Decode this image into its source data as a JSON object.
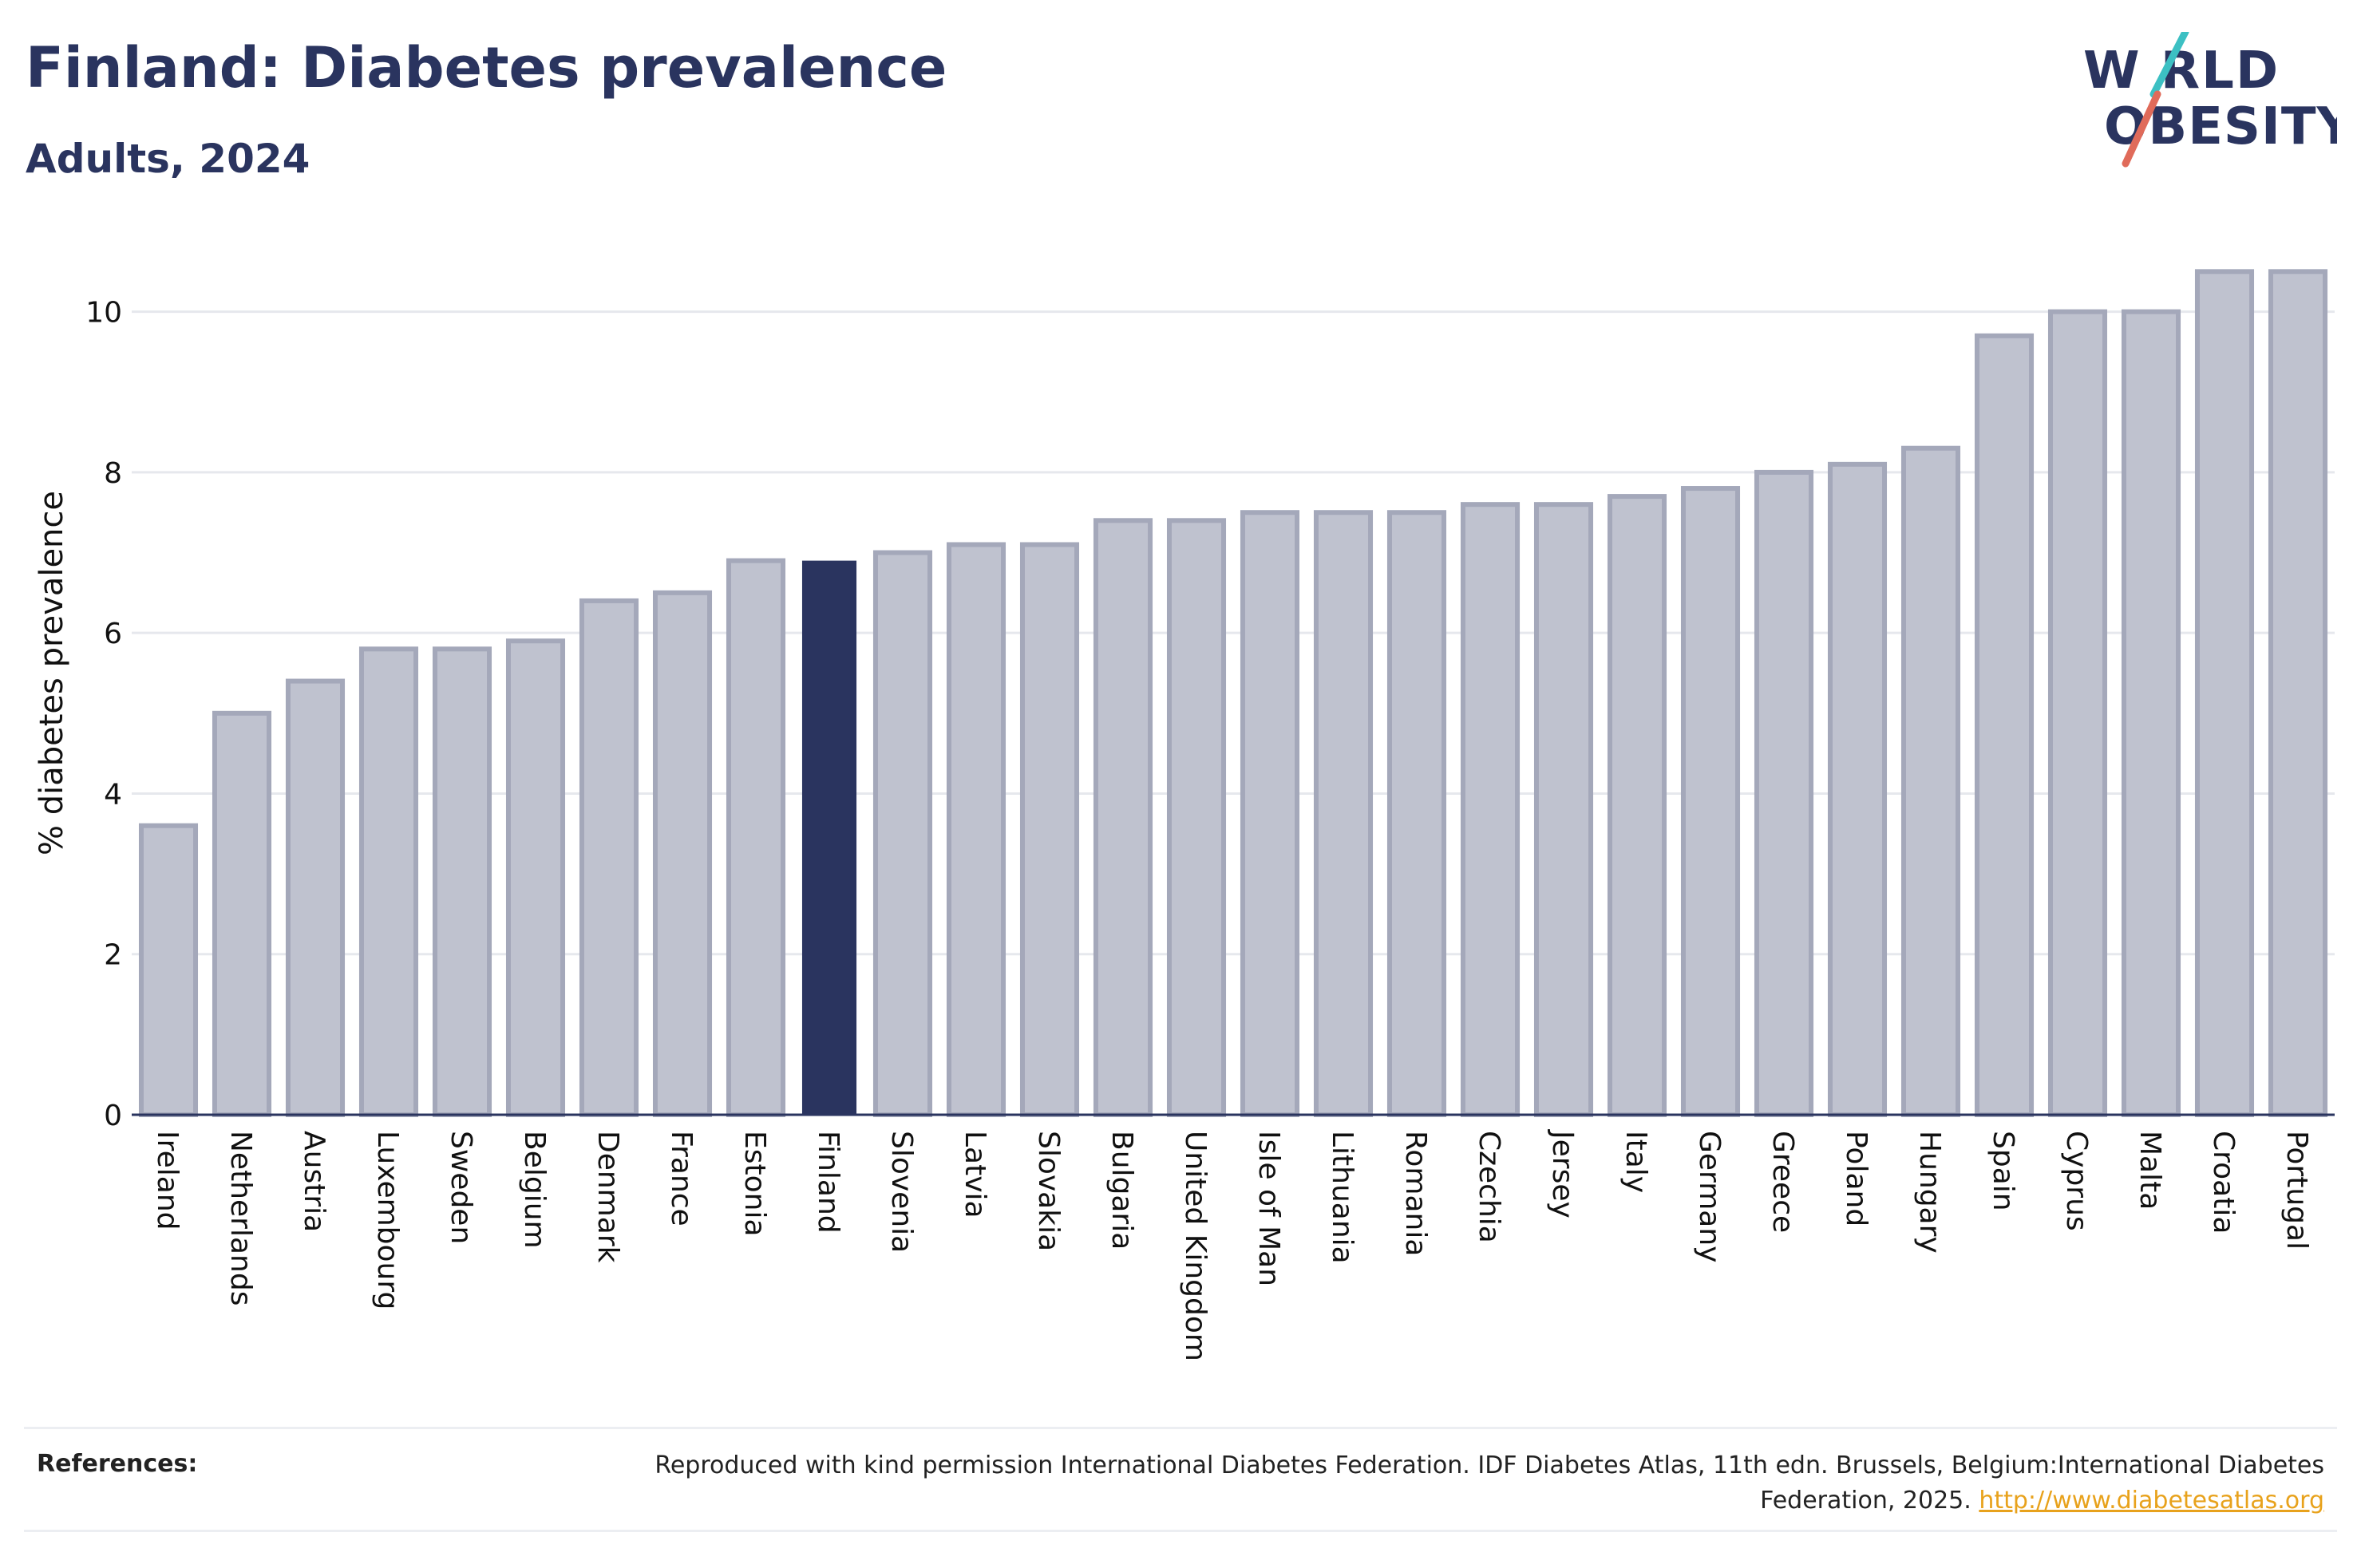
{
  "header": {
    "title": "Finland: Diabetes prevalence",
    "subtitle": "Adults, 2024"
  },
  "logo": {
    "line1": "W RLD",
    "line2": "OBESITY",
    "text": "WORLD OBESITY",
    "slash_colors": [
      "#3cc0c3",
      "#e06b5a"
    ]
  },
  "references": {
    "label": "References:",
    "text": "Reproduced with kind permission International Diabetes Federation. IDF Diabetes Atlas, 11th edn. Brussels, Belgium:International Diabetes Federation, 2025.",
    "link": "http://www.diabetesatlas.org"
  },
  "colors": {
    "highlight": "#2a345f",
    "bar_fill": "#bfc2cf",
    "bar_stroke": "#a4a8ba",
    "grid": "#e6e8ed",
    "axis_text": "#111111"
  },
  "chart_data": {
    "type": "bar",
    "title": "Finland: Diabetes prevalence",
    "subtitle": "Adults, 2024",
    "xlabel": "",
    "ylabel": "% diabetes prevalence",
    "ylim": [
      0,
      11
    ],
    "yticks": [
      0,
      2,
      4,
      6,
      8,
      10
    ],
    "grid": true,
    "highlight": "Finland",
    "categories": [
      "Ireland",
      "Netherlands",
      "Austria",
      "Luxembourg",
      "Sweden",
      "Belgium",
      "Denmark",
      "France",
      "Estonia",
      "Finland",
      "Slovenia",
      "Latvia",
      "Slovakia",
      "Bulgaria",
      "United Kingdom",
      "Isle of Man",
      "Lithuania",
      "Romania",
      "Czechia",
      "Jersey",
      "Italy",
      "Germany",
      "Greece",
      "Poland",
      "Hungary",
      "Spain",
      "Cyprus",
      "Malta",
      "Croatia",
      "Portugal"
    ],
    "values": [
      3.6,
      5.0,
      5.4,
      5.8,
      5.8,
      5.9,
      6.4,
      6.5,
      6.9,
      6.9,
      7.0,
      7.1,
      7.1,
      7.4,
      7.4,
      7.5,
      7.5,
      7.5,
      7.6,
      7.6,
      7.7,
      7.8,
      8.0,
      8.1,
      8.3,
      9.7,
      10.0,
      10.0,
      10.5,
      10.5
    ]
  }
}
